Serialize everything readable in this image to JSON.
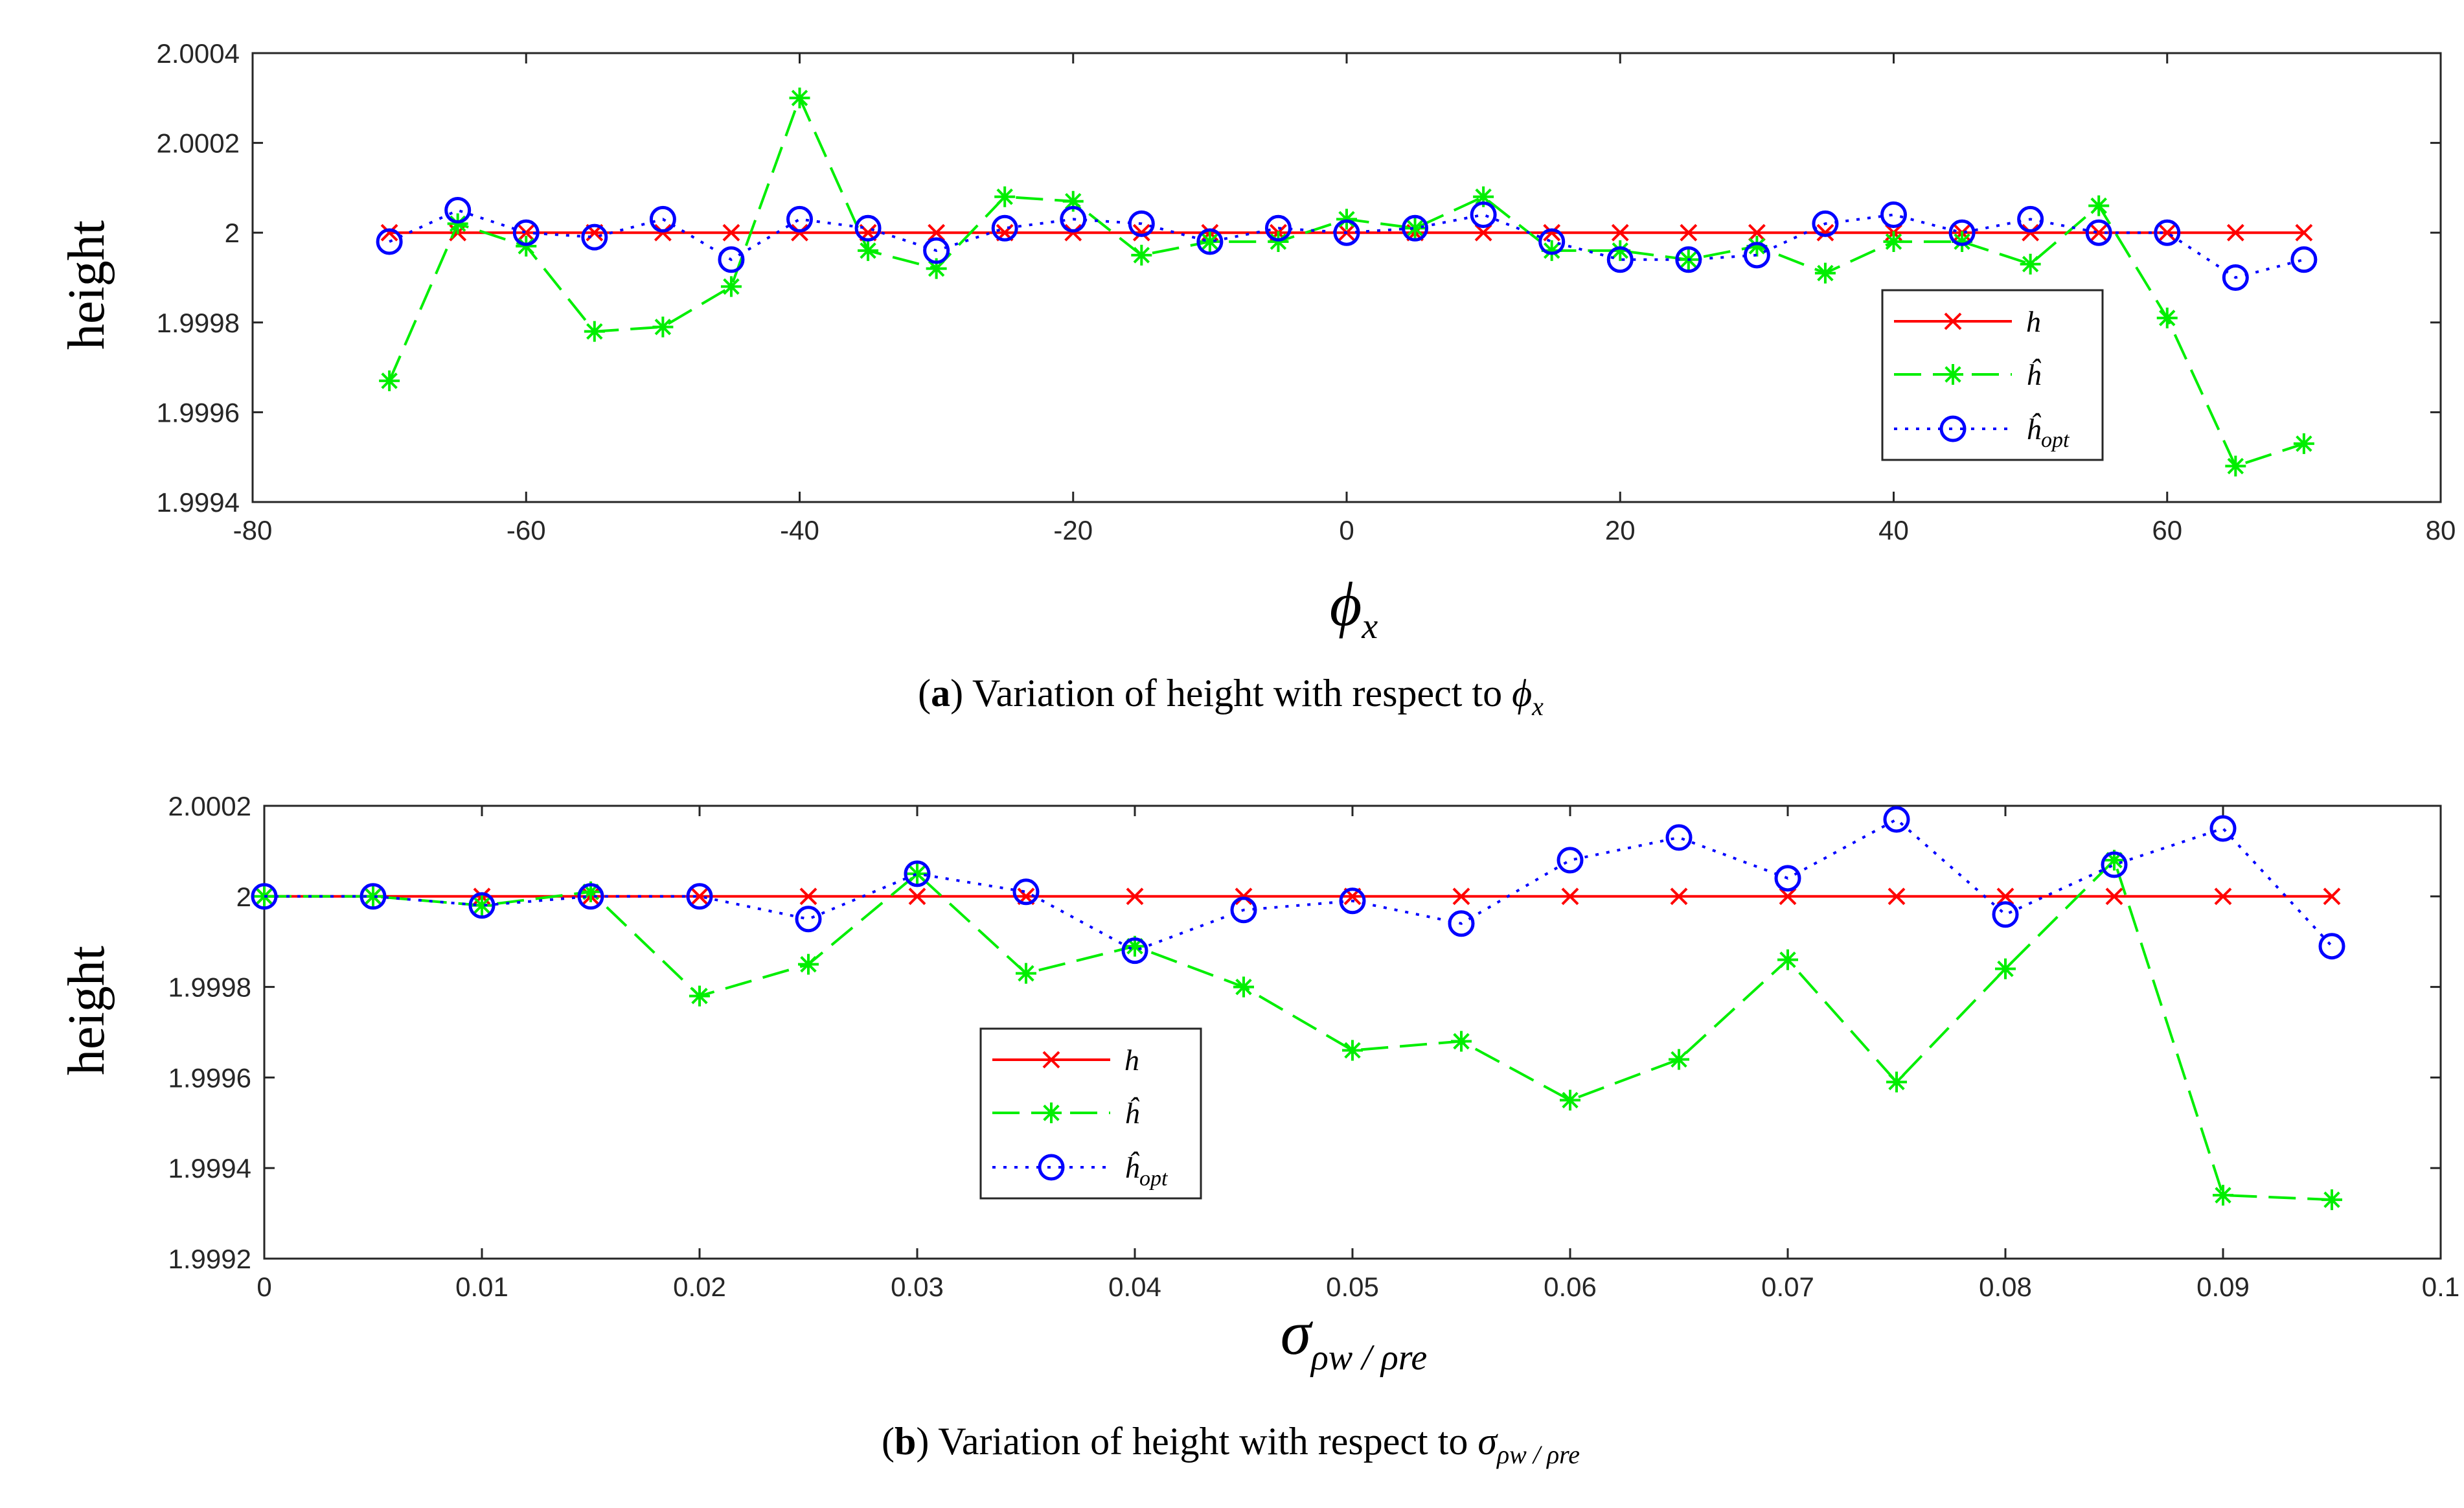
{
  "colors": {
    "h": "#ff0000",
    "h_hat": "#00ee00",
    "h_opt": "#0000ff",
    "axis": "#262626",
    "grid": "#262626"
  },
  "chart_data": [
    {
      "type": "line",
      "id": "a",
      "ylabel": "height",
      "xlabel_symbol": "ϕ",
      "xlabel_sub": "x",
      "caption": {
        "label": "a",
        "text": "Variation of height with respect to ",
        "symbol": "ϕ",
        "sub": "x"
      },
      "xlim": [
        -80,
        80
      ],
      "ylim": [
        1.9994,
        2.0004
      ],
      "xticks": [
        -80,
        -60,
        -40,
        -20,
        0,
        20,
        40,
        60,
        80
      ],
      "yticks": [
        1.9994,
        1.9996,
        1.9998,
        2,
        2.0002,
        2.0004
      ],
      "xtick_labels": [
        "-80",
        "-60",
        "-40",
        "-20",
        "0",
        "20",
        "40",
        "60",
        "80"
      ],
      "ytick_labels": [
        "1.9994",
        "1.9996",
        "1.9998",
        "2",
        "2.0002",
        "2.0004"
      ],
      "legend": {
        "position": "right",
        "entries": [
          "h",
          "ĥ",
          "ĥ",
          "opt"
        ]
      },
      "x": [
        -70,
        -65,
        -60,
        -55,
        -50,
        -45,
        -40,
        -35,
        -30,
        -25,
        -20,
        -15,
        -10,
        -5,
        0,
        5,
        10,
        15,
        20,
        25,
        30,
        35,
        40,
        45,
        50,
        55,
        60,
        65,
        70
      ],
      "series": [
        {
          "name": "h",
          "style": "solid",
          "marker": "x",
          "values": [
            2,
            2,
            2,
            2,
            2,
            2,
            2,
            2,
            2,
            2,
            2,
            2,
            2,
            2,
            2,
            2,
            2,
            2,
            2,
            2,
            2,
            2,
            2,
            2,
            2,
            2,
            2,
            2,
            2
          ]
        },
        {
          "name": "ĥ",
          "style": "dashed",
          "marker": "star",
          "values": [
            1.99967,
            2.00002,
            1.99997,
            1.99978,
            1.99979,
            1.99988,
            2.0003,
            1.99996,
            1.99992,
            2.00008,
            2.00007,
            1.99995,
            1.99998,
            1.99998,
            2.00003,
            2.00001,
            2.00008,
            1.99996,
            1.99996,
            1.99994,
            1.99997,
            1.99991,
            1.99998,
            1.99998,
            1.99993,
            2.00006,
            1.99981,
            1.99948,
            1.99953
          ]
        },
        {
          "name": "ĥopt",
          "style": "dotted",
          "marker": "circle",
          "values": [
            1.99998,
            2.00005,
            2.0,
            1.99999,
            2.00003,
            1.99994,
            2.00003,
            2.00001,
            1.99996,
            2.00001,
            2.00003,
            2.00002,
            1.99998,
            2.00001,
            2.0,
            2.00001,
            2.00004,
            1.99998,
            1.99994,
            1.99994,
            1.99995,
            2.00002,
            2.00004,
            2.0,
            2.00003,
            2.0,
            2.0,
            1.9999,
            1.99994
          ]
        }
      ]
    },
    {
      "type": "line",
      "id": "b",
      "ylabel": "height",
      "xlabel_symbol": "σ",
      "xlabel_sub": "ρw / ρre",
      "caption": {
        "label": "b",
        "text": "Variation of height with respect to ",
        "symbol": "σ",
        "sub": "ρw / ρre"
      },
      "xlim": [
        0,
        0.1
      ],
      "ylim": [
        1.9992,
        2.0002
      ],
      "xticks": [
        0,
        0.01,
        0.02,
        0.03,
        0.04,
        0.05,
        0.06,
        0.07,
        0.08,
        0.09,
        0.1
      ],
      "yticks": [
        1.9992,
        1.9994,
        1.9996,
        1.9998,
        2,
        2.0002
      ],
      "xtick_labels": [
        "0",
        "0.01",
        "0.02",
        "0.03",
        "0.04",
        "0.05",
        "0.06",
        "0.07",
        "0.08",
        "0.09",
        "0.1"
      ],
      "ytick_labels": [
        "1.9992",
        "1.9994",
        "1.9996",
        "1.9998",
        "2",
        "2.0002"
      ],
      "legend": {
        "position": "center-left",
        "entries": [
          "h",
          "ĥ",
          "ĥ",
          "opt"
        ]
      },
      "x": [
        0,
        0.005,
        0.01,
        0.015,
        0.02,
        0.025,
        0.03,
        0.035,
        0.04,
        0.045,
        0.05,
        0.055,
        0.06,
        0.065,
        0.07,
        0.075,
        0.08,
        0.085,
        0.09,
        0.095
      ],
      "series": [
        {
          "name": "h",
          "style": "solid",
          "marker": "x",
          "values": [
            2,
            2,
            2,
            2,
            2,
            2,
            2,
            2,
            2,
            2,
            2,
            2,
            2,
            2,
            2,
            2,
            2,
            2,
            2,
            2
          ]
        },
        {
          "name": "ĥ",
          "style": "dashed",
          "marker": "star",
          "values": [
            2.0,
            2.0,
            1.99998,
            2.00001,
            1.99978,
            1.99985,
            2.00005,
            1.99983,
            1.99989,
            1.9998,
            1.99966,
            1.99968,
            1.99955,
            1.99964,
            1.99986,
            1.99959,
            1.99984,
            2.00008,
            1.99934,
            1.99933
          ]
        },
        {
          "name": "ĥopt",
          "style": "dotted",
          "marker": "circle",
          "values": [
            2.0,
            2.0,
            1.99998,
            2.0,
            2.0,
            1.99995,
            2.00005,
            2.00001,
            1.99988,
            1.99997,
            1.99999,
            1.99994,
            2.00008,
            2.00013,
            2.00004,
            2.00017,
            1.99996,
            2.00007,
            2.00015,
            1.99989
          ]
        }
      ]
    }
  ]
}
